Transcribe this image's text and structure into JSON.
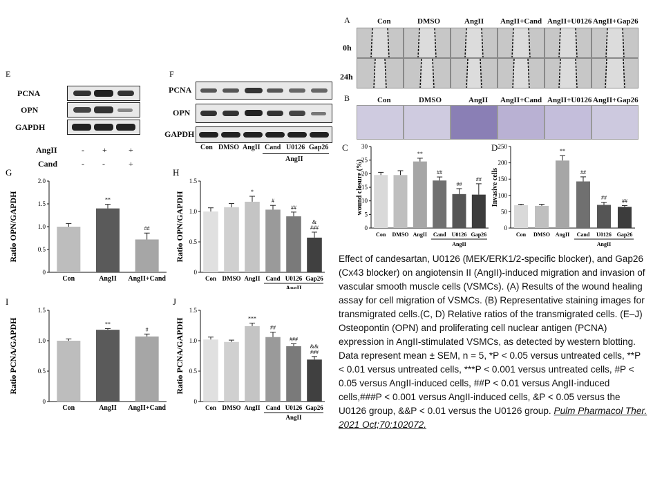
{
  "caption": {
    "text": "Effect of candesartan, U0126 (MEK/ERK1/2-specific blocker), and Gap26 (Cx43 blocker) on angiotensin II (AngII)-induced migration and invasion of vascular smooth muscle cells (VSMCs). (A) Results of the wound healing assay for cell migration of VSMCs. (B) Representative staining images for transmigrated cells.(C, D) Relative ratios of the transmigrated cells. (E–J) Osteopontin (OPN) and proliferating cell nuclear antigen (PCNA) expression in AngII-stimulated VSMCs, as detected by western blotting. Data represent mean ± SEM, n = 5, *P < 0.05 versus untreated cells, **P < 0.01 versus untreated cells, ***P < 0.001 versus untreated cells, #P < 0.05 versus AngII-induced cells, ##P < 0.01 versus AngII-induced cells,###P < 0.001 versus AngII-induced cells, &P < 0.05 versus the U0126 group, &&P < 0.01 versus the U0126 group.",
    "citation": "Pulm Pharmacol Ther. 2021 Oct;70:102072."
  },
  "panel_A": {
    "letter": "A",
    "columns": [
      "Con",
      "DMSO",
      "AngII",
      "AngII+Cand",
      "AngII+U0126",
      "AngII+Gap26"
    ],
    "rows": [
      "0h",
      "24h"
    ]
  },
  "panel_B": {
    "letter": "B",
    "columns": [
      "Con",
      "DMSO",
      "AngII",
      "AngII+Cand",
      "AngII+U0126",
      "AngII+Gap26"
    ]
  },
  "panel_E": {
    "letter": "E",
    "rows": [
      "PCNA",
      "OPN",
      "GAPDH"
    ],
    "treatments": [
      {
        "label": "AngII",
        "marks": [
          "-",
          "+",
          "+"
        ]
      },
      {
        "label": "Cand",
        "marks": [
          "-",
          "-",
          "+"
        ]
      }
    ]
  },
  "panel_F": {
    "letter": "F",
    "rows": [
      "PCNA",
      "OPN",
      "GAPDH"
    ],
    "lanes": [
      "Con",
      "DMSO",
      "AngII",
      "Cand",
      "U0126",
      "Gap26"
    ],
    "group_label": "AngII"
  },
  "chart_data": [
    {
      "panel": "C",
      "type": "bar",
      "ylabel": "wound closure (%)",
      "categories": [
        "Con",
        "DMSO",
        "AngII",
        "Cand",
        "U0126",
        "Gap26"
      ],
      "values": [
        19.5,
        19.5,
        24.5,
        17.5,
        12.5,
        12.3
      ],
      "errors": [
        1.0,
        1.6,
        1.2,
        1.3,
        2.0,
        4.0
      ],
      "annotations": [
        "",
        "",
        "**",
        "##",
        "##",
        "##"
      ],
      "ylim": [
        0,
        30
      ],
      "yticks": [
        0,
        5,
        10,
        15,
        20,
        25,
        30
      ],
      "colors": [
        "#d9d9d9",
        "#bfbfbf",
        "#a6a6a6",
        "#707070",
        "#555555",
        "#3c3c3c"
      ],
      "group_label": "AngII",
      "group_start": 3
    },
    {
      "panel": "D",
      "type": "bar",
      "ylabel": "Invasive cells",
      "categories": [
        "Con",
        "DMSO",
        "AngII",
        "Cand",
        "U0126",
        "Gap26"
      ],
      "values": [
        70,
        68,
        207,
        143,
        71,
        65
      ],
      "errors": [
        3,
        5,
        15,
        14,
        8,
        4
      ],
      "annotations": [
        "",
        "",
        "**",
        "##",
        "##",
        "##"
      ],
      "ylim": [
        0,
        250
      ],
      "yticks": [
        0,
        50,
        100,
        150,
        200,
        250
      ],
      "colors": [
        "#d9d9d9",
        "#bfbfbf",
        "#a6a6a6",
        "#707070",
        "#555555",
        "#3c3c3c"
      ],
      "group_label": "AngII",
      "group_start": 3
    },
    {
      "panel": "G",
      "type": "bar",
      "ylabel": "Ratio OPN/GAPDH",
      "categories": [
        "Con",
        "AngII",
        "AngII+Cand"
      ],
      "values": [
        1.0,
        1.4,
        0.72
      ],
      "errors": [
        0.07,
        0.09,
        0.14
      ],
      "annotations": [
        "",
        "**",
        "##"
      ],
      "ylim": [
        0,
        2.0
      ],
      "yticks": [
        0,
        0.5,
        1.0,
        1.5,
        2.0
      ],
      "colors": [
        "#bdbdbd",
        "#5a5a5a",
        "#a6a6a6"
      ]
    },
    {
      "panel": "H",
      "type": "bar",
      "ylabel": "Ratio OPN/GAPDH",
      "categories": [
        "Con",
        "DMSO",
        "AngII",
        "Cand",
        "U0126",
        "Gap26"
      ],
      "values": [
        1.0,
        1.07,
        1.16,
        1.03,
        0.92,
        0.57
      ],
      "errors": [
        0.06,
        0.06,
        0.09,
        0.07,
        0.07,
        0.09
      ],
      "annotations": [
        "",
        "",
        "*",
        "#",
        "##",
        "&\n###"
      ],
      "ylim": [
        0,
        1.5
      ],
      "yticks": [
        0,
        0.5,
        1.0,
        1.5
      ],
      "colors": [
        "#e0e0e0",
        "#d0d0d0",
        "#c4c4c4",
        "#9a9a9a",
        "#7a7a7a",
        "#404040"
      ],
      "group_label": "AngII",
      "group_start": 3
    },
    {
      "panel": "I",
      "type": "bar",
      "ylabel": "Ratio PCNA/GAPDH",
      "categories": [
        "Con",
        "AngII",
        "AngII+Cand"
      ],
      "values": [
        1.0,
        1.18,
        1.07
      ],
      "errors": [
        0.03,
        0.02,
        0.04
      ],
      "annotations": [
        "",
        "**",
        "#"
      ],
      "ylim": [
        0,
        1.5
      ],
      "yticks": [
        0,
        0.5,
        1.0,
        1.5
      ],
      "colors": [
        "#bdbdbd",
        "#5a5a5a",
        "#a6a6a6"
      ]
    },
    {
      "panel": "J",
      "type": "bar",
      "ylabel": "Ratio PCNA/GAPDH",
      "categories": [
        "Con",
        "DMSO",
        "AngII",
        "Cand",
        "U0126",
        "Gap26"
      ],
      "values": [
        1.02,
        0.98,
        1.24,
        1.06,
        0.91,
        0.69
      ],
      "errors": [
        0.04,
        0.03,
        0.05,
        0.08,
        0.04,
        0.05
      ],
      "annotations": [
        "",
        "",
        "***",
        "##",
        "###",
        "&&\n###"
      ],
      "ylim": [
        0,
        1.5
      ],
      "yticks": [
        0,
        0.5,
        1.0,
        1.5
      ],
      "colors": [
        "#e0e0e0",
        "#d0d0d0",
        "#c4c4c4",
        "#9a9a9a",
        "#7a7a7a",
        "#404040"
      ],
      "group_label": "AngII",
      "group_start": 3
    }
  ]
}
